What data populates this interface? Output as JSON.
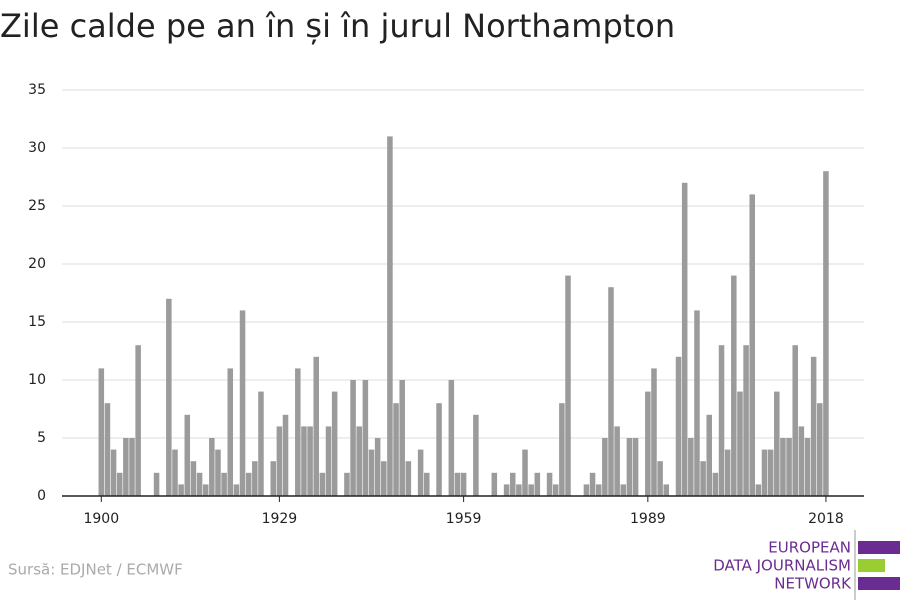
{
  "chart_data": {
    "type": "bar",
    "title": "Zile calde pe an în și în jurul Northampton",
    "source": "Sursă: EDJNet / ECMWF",
    "logo": [
      "EUROPEAN",
      "DATA JOURNALISM",
      "NETWORK"
    ],
    "color": "#9b9b9b",
    "grid": true,
    "x": [
      1900,
      1901,
      1902,
      1903,
      1904,
      1905,
      1906,
      1907,
      1908,
      1909,
      1910,
      1911,
      1912,
      1913,
      1914,
      1915,
      1916,
      1917,
      1918,
      1919,
      1920,
      1921,
      1922,
      1923,
      1924,
      1925,
      1926,
      1927,
      1928,
      1929,
      1930,
      1931,
      1932,
      1933,
      1934,
      1935,
      1936,
      1937,
      1938,
      1939,
      1940,
      1941,
      1942,
      1943,
      1944,
      1945,
      1946,
      1947,
      1948,
      1949,
      1950,
      1951,
      1952,
      1953,
      1954,
      1955,
      1956,
      1957,
      1958,
      1959,
      1960,
      1961,
      1962,
      1963,
      1964,
      1965,
      1966,
      1967,
      1968,
      1969,
      1970,
      1971,
      1972,
      1973,
      1974,
      1975,
      1976,
      1977,
      1978,
      1979,
      1980,
      1981,
      1982,
      1983,
      1984,
      1985,
      1986,
      1987,
      1988,
      1989,
      1990,
      1991,
      1992,
      1993,
      1994,
      1995,
      1996,
      1997,
      1998,
      1999,
      2000,
      2001,
      2002,
      2003,
      2004,
      2005,
      2006,
      2007,
      2008,
      2009,
      2010,
      2011,
      2012,
      2013,
      2014,
      2015,
      2016,
      2017,
      2018
    ],
    "values": [
      11,
      8,
      4,
      2,
      5,
      5,
      13,
      0,
      0,
      2,
      0,
      17,
      4,
      1,
      7,
      3,
      2,
      1,
      5,
      4,
      2,
      11,
      1,
      16,
      2,
      3,
      9,
      0,
      3,
      6,
      7,
      0,
      11,
      6,
      6,
      12,
      2,
      6,
      9,
      0,
      2,
      10,
      6,
      10,
      4,
      5,
      3,
      31,
      8,
      10,
      3,
      0,
      4,
      2,
      0,
      8,
      0,
      10,
      2,
      2,
      0,
      7,
      0,
      0,
      2,
      0,
      1,
      2,
      1,
      4,
      1,
      2,
      0,
      2,
      1,
      8,
      19,
      0,
      0,
      1,
      2,
      1,
      5,
      18,
      6,
      1,
      5,
      5,
      0,
      9,
      11,
      3,
      1,
      0,
      12,
      27,
      5,
      16,
      3,
      7,
      2,
      13,
      4,
      19,
      9,
      13,
      26,
      1,
      4,
      4,
      9,
      5,
      5,
      13,
      6,
      5,
      12,
      8,
      28
    ],
    "xlim": [
      1893.6,
      2024.2
    ],
    "xticks": [
      1900,
      1929,
      1959,
      1989,
      2018
    ],
    "ylim": [
      0,
      35
    ],
    "yticks": [
      0,
      5,
      10,
      15,
      20,
      25,
      30,
      35
    ]
  }
}
